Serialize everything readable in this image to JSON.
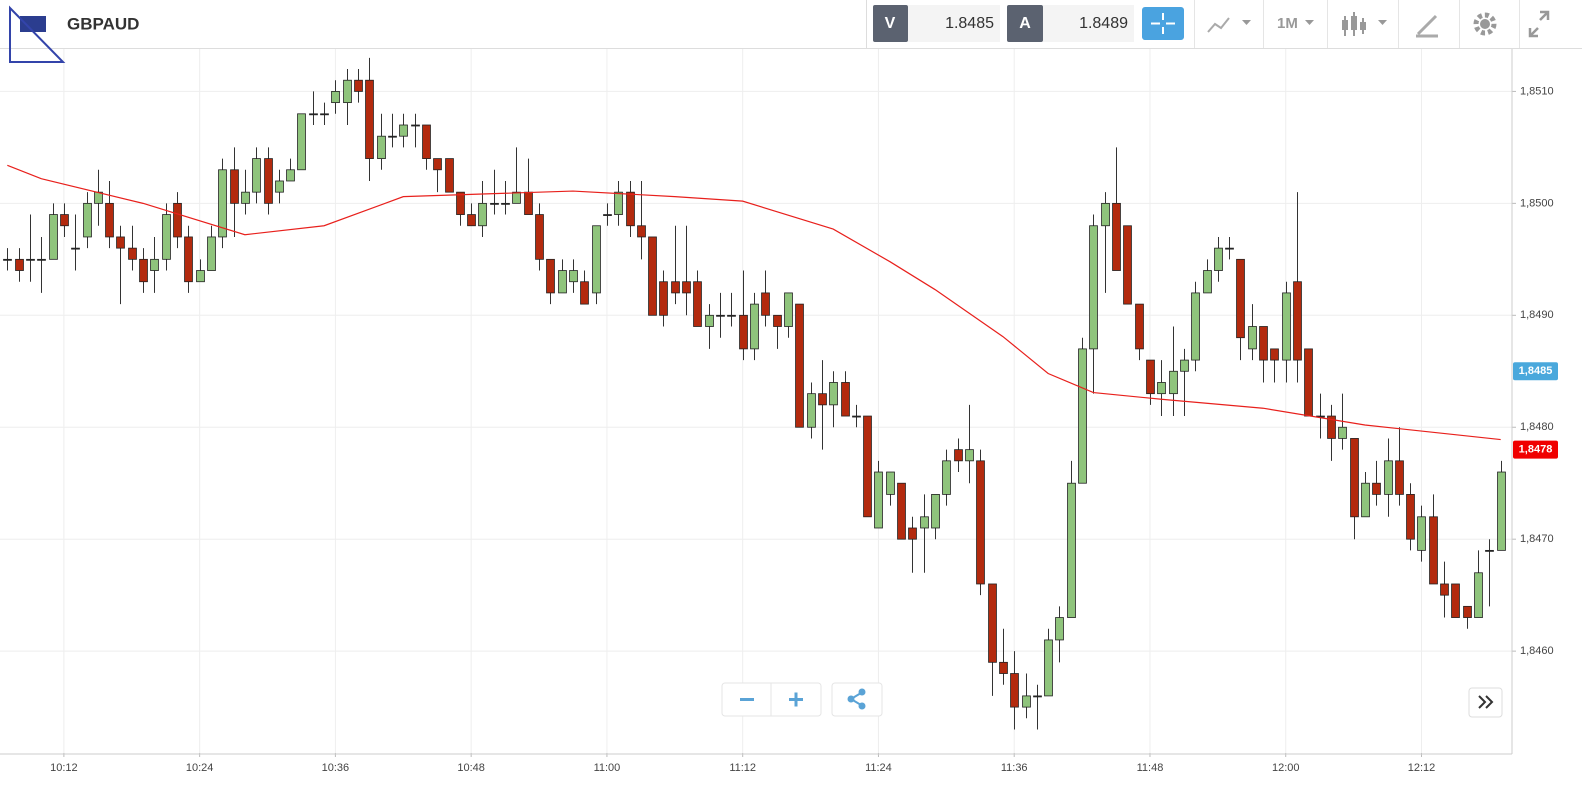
{
  "header": {
    "symbol": "GBPAUD",
    "bid_label": "V",
    "bid": "1.8485",
    "ask_label": "A",
    "ask": "1.8489",
    "timeframe": "1M"
  },
  "chart_data": {
    "type": "candlestick",
    "xlim": [
      "10:06",
      "12:20"
    ],
    "ylim": [
      1.84509,
      1.85137
    ],
    "xticks": [
      "10:12",
      "10:24",
      "10:36",
      "10:48",
      "11:00",
      "11:12",
      "11:24",
      "11:36",
      "11:48",
      "12:00",
      "12:12"
    ],
    "yticks": [
      {
        "value": 1.851,
        "label": "1,8510"
      },
      {
        "value": 1.85,
        "label": "1,8500"
      },
      {
        "value": 1.849,
        "label": "1,8490"
      },
      {
        "value": 1.848,
        "label": "1,8480"
      },
      {
        "value": 1.847,
        "label": "1,8470"
      },
      {
        "value": 1.846,
        "label": "1,8460"
      }
    ],
    "grid": true,
    "up_color": "#8fc47c",
    "down_color": "#b32a0e",
    "price_markers": [
      {
        "value": 1.8485,
        "label": "1,8485",
        "color": "#4aa8dc"
      },
      {
        "value": 1.8478,
        "label": "1,8478",
        "color": "#f00000"
      }
    ],
    "moving_average": {
      "color": "#e8201c",
      "x": [
        "10:07",
        "10:10",
        "10:19",
        "10:28",
        "10:35",
        "10:42",
        "10:57",
        "11:06",
        "11:12",
        "11:20",
        "11:25",
        "11:29",
        "11:35",
        "11:39",
        "11:43",
        "11:49",
        "11:58",
        "12:07",
        "12:19"
      ],
      "values": [
        1.85034,
        1.85022,
        1.85,
        1.84972,
        1.8498,
        1.85006,
        1.85011,
        1.85006,
        1.85002,
        1.84977,
        1.84948,
        1.84923,
        1.84881,
        1.84848,
        1.84831,
        1.84825,
        1.84817,
        1.84802,
        1.84789
      ]
    },
    "candles": [
      {
        "t": "10:07",
        "o": 1.8495,
        "h": 1.8496,
        "l": 1.8494,
        "c": 1.8495
      },
      {
        "t": "10:08",
        "o": 1.8495,
        "h": 1.8496,
        "l": 1.8493,
        "c": 1.8494
      },
      {
        "t": "10:09",
        "o": 1.8495,
        "h": 1.8499,
        "l": 1.8493,
        "c": 1.8495
      },
      {
        "t": "10:10",
        "o": 1.8495,
        "h": 1.8497,
        "l": 1.8492,
        "c": 1.8495
      },
      {
        "t": "10:11",
        "o": 1.8495,
        "h": 1.85,
        "l": 1.8495,
        "c": 1.8499
      },
      {
        "t": "10:12",
        "o": 1.8499,
        "h": 1.85,
        "l": 1.8497,
        "c": 1.8498
      },
      {
        "t": "10:13",
        "o": 1.8496,
        "h": 1.8499,
        "l": 1.8494,
        "c": 1.8496
      },
      {
        "t": "10:14",
        "o": 1.8497,
        "h": 1.8501,
        "l": 1.8496,
        "c": 1.85
      },
      {
        "t": "10:15",
        "o": 1.85,
        "h": 1.8503,
        "l": 1.8498,
        "c": 1.8501
      },
      {
        "t": "10:16",
        "o": 1.85,
        "h": 1.8502,
        "l": 1.8496,
        "c": 1.8497
      },
      {
        "t": "10:17",
        "o": 1.8497,
        "h": 1.8498,
        "l": 1.8491,
        "c": 1.8496
      },
      {
        "t": "10:18",
        "o": 1.8496,
        "h": 1.8498,
        "l": 1.8494,
        "c": 1.8495
      },
      {
        "t": "10:19",
        "o": 1.8495,
        "h": 1.8496,
        "l": 1.8492,
        "c": 1.8493
      },
      {
        "t": "10:20",
        "o": 1.8494,
        "h": 1.8497,
        "l": 1.8492,
        "c": 1.8495
      },
      {
        "t": "10:21",
        "o": 1.8495,
        "h": 1.85,
        "l": 1.8494,
        "c": 1.8499
      },
      {
        "t": "10:22",
        "o": 1.85,
        "h": 1.8501,
        "l": 1.8496,
        "c": 1.8497
      },
      {
        "t": "10:23",
        "o": 1.8497,
        "h": 1.8498,
        "l": 1.8492,
        "c": 1.8493
      },
      {
        "t": "10:24",
        "o": 1.8493,
        "h": 1.8495,
        "l": 1.8493,
        "c": 1.8494
      },
      {
        "t": "10:25",
        "o": 1.8494,
        "h": 1.8498,
        "l": 1.8494,
        "c": 1.8497
      },
      {
        "t": "10:26",
        "o": 1.8497,
        "h": 1.8504,
        "l": 1.8496,
        "c": 1.8503
      },
      {
        "t": "10:27",
        "o": 1.8503,
        "h": 1.8505,
        "l": 1.8497,
        "c": 1.85
      },
      {
        "t": "10:28",
        "o": 1.85,
        "h": 1.8503,
        "l": 1.8499,
        "c": 1.8501
      },
      {
        "t": "10:29",
        "o": 1.8501,
        "h": 1.8505,
        "l": 1.85,
        "c": 1.8504
      },
      {
        "t": "10:30",
        "o": 1.8504,
        "h": 1.8505,
        "l": 1.8499,
        "c": 1.85
      },
      {
        "t": "10:31",
        "o": 1.8501,
        "h": 1.8503,
        "l": 1.85,
        "c": 1.8502
      },
      {
        "t": "10:32",
        "o": 1.8502,
        "h": 1.8504,
        "l": 1.8502,
        "c": 1.8503
      },
      {
        "t": "10:33",
        "o": 1.8503,
        "h": 1.8508,
        "l": 1.8503,
        "c": 1.8508
      },
      {
        "t": "10:34",
        "o": 1.8508,
        "h": 1.851,
        "l": 1.8507,
        "c": 1.8508
      },
      {
        "t": "10:35",
        "o": 1.8508,
        "h": 1.8509,
        "l": 1.8507,
        "c": 1.8508
      },
      {
        "t": "10:36",
        "o": 1.8509,
        "h": 1.8511,
        "l": 1.8508,
        "c": 1.851
      },
      {
        "t": "10:37",
        "o": 1.8509,
        "h": 1.8512,
        "l": 1.8507,
        "c": 1.8511
      },
      {
        "t": "10:38",
        "o": 1.8511,
        "h": 1.8512,
        "l": 1.8509,
        "c": 1.851
      },
      {
        "t": "10:39",
        "o": 1.8511,
        "h": 1.8513,
        "l": 1.8502,
        "c": 1.8504
      },
      {
        "t": "10:40",
        "o": 1.8504,
        "h": 1.8508,
        "l": 1.8503,
        "c": 1.8506
      },
      {
        "t": "10:41",
        "o": 1.8506,
        "h": 1.8508,
        "l": 1.8505,
        "c": 1.8506
      },
      {
        "t": "10:42",
        "o": 1.8506,
        "h": 1.8508,
        "l": 1.8505,
        "c": 1.8507
      },
      {
        "t": "10:43",
        "o": 1.8507,
        "h": 1.8508,
        "l": 1.8505,
        "c": 1.8507
      },
      {
        "t": "10:44",
        "o": 1.8507,
        "h": 1.8507,
        "l": 1.8503,
        "c": 1.8504
      },
      {
        "t": "10:45",
        "o": 1.8504,
        "h": 1.8504,
        "l": 1.8501,
        "c": 1.8503
      },
      {
        "t": "10:46",
        "o": 1.8504,
        "h": 1.8504,
        "l": 1.8501,
        "c": 1.8501
      },
      {
        "t": "10:47",
        "o": 1.8501,
        "h": 1.8501,
        "l": 1.8498,
        "c": 1.8499
      },
      {
        "t": "10:48",
        "o": 1.8499,
        "h": 1.85,
        "l": 1.8498,
        "c": 1.8498
      },
      {
        "t": "10:49",
        "o": 1.8498,
        "h": 1.8502,
        "l": 1.8497,
        "c": 1.85
      },
      {
        "t": "10:50",
        "o": 1.85,
        "h": 1.8503,
        "l": 1.8499,
        "c": 1.85
      },
      {
        "t": "10:51",
        "o": 1.85,
        "h": 1.8502,
        "l": 1.8499,
        "c": 1.85
      },
      {
        "t": "10:52",
        "o": 1.85,
        "h": 1.8505,
        "l": 1.85,
        "c": 1.8501
      },
      {
        "t": "10:53",
        "o": 1.8501,
        "h": 1.8504,
        "l": 1.8499,
        "c": 1.8499
      },
      {
        "t": "10:54",
        "o": 1.8499,
        "h": 1.85,
        "l": 1.8494,
        "c": 1.8495
      },
      {
        "t": "10:55",
        "o": 1.8495,
        "h": 1.8495,
        "l": 1.8491,
        "c": 1.8492
      },
      {
        "t": "10:56",
        "o": 1.8492,
        "h": 1.8495,
        "l": 1.8492,
        "c": 1.8494
      },
      {
        "t": "10:57",
        "o": 1.8493,
        "h": 1.8495,
        "l": 1.8492,
        "c": 1.8494
      },
      {
        "t": "10:58",
        "o": 1.8493,
        "h": 1.8494,
        "l": 1.8491,
        "c": 1.8491
      },
      {
        "t": "10:59",
        "o": 1.8492,
        "h": 1.8498,
        "l": 1.8491,
        "c": 1.8498
      },
      {
        "t": "11:00",
        "o": 1.8499,
        "h": 1.85,
        "l": 1.8498,
        "c": 1.8499
      },
      {
        "t": "11:01",
        "o": 1.8499,
        "h": 1.8502,
        "l": 1.8498,
        "c": 1.8501
      },
      {
        "t": "11:02",
        "o": 1.8501,
        "h": 1.8502,
        "l": 1.8497,
        "c": 1.8498
      },
      {
        "t": "11:03",
        "o": 1.8498,
        "h": 1.8502,
        "l": 1.8495,
        "c": 1.8497
      },
      {
        "t": "11:04",
        "o": 1.8497,
        "h": 1.8497,
        "l": 1.849,
        "c": 1.849
      },
      {
        "t": "11:05",
        "o": 1.8493,
        "h": 1.8494,
        "l": 1.8489,
        "c": 1.849
      },
      {
        "t": "11:06",
        "o": 1.8493,
        "h": 1.8498,
        "l": 1.8491,
        "c": 1.8492
      },
      {
        "t": "11:07",
        "o": 1.8493,
        "h": 1.8498,
        "l": 1.849,
        "c": 1.8492
      },
      {
        "t": "11:08",
        "o": 1.8493,
        "h": 1.8494,
        "l": 1.8489,
        "c": 1.8489
      },
      {
        "t": "11:09",
        "o": 1.8489,
        "h": 1.8491,
        "l": 1.8487,
        "c": 1.849
      },
      {
        "t": "11:10",
        "o": 1.849,
        "h": 1.8492,
        "l": 1.8488,
        "c": 1.849
      },
      {
        "t": "11:11",
        "o": 1.849,
        "h": 1.8492,
        "l": 1.8489,
        "c": 1.849
      },
      {
        "t": "11:12",
        "o": 1.849,
        "h": 1.8494,
        "l": 1.8486,
        "c": 1.8487
      },
      {
        "t": "11:13",
        "o": 1.8487,
        "h": 1.8492,
        "l": 1.8486,
        "c": 1.8491
      },
      {
        "t": "11:14",
        "o": 1.8492,
        "h": 1.8494,
        "l": 1.8489,
        "c": 1.849
      },
      {
        "t": "11:15",
        "o": 1.849,
        "h": 1.849,
        "l": 1.8487,
        "c": 1.8489
      },
      {
        "t": "11:16",
        "o": 1.8489,
        "h": 1.8492,
        "l": 1.8488,
        "c": 1.8492
      },
      {
        "t": "11:17",
        "o": 1.8491,
        "h": 1.8491,
        "l": 1.848,
        "c": 1.848
      },
      {
        "t": "11:18",
        "o": 1.848,
        "h": 1.8484,
        "l": 1.8479,
        "c": 1.8483
      },
      {
        "t": "11:19",
        "o": 1.8483,
        "h": 1.8486,
        "l": 1.8478,
        "c": 1.8482
      },
      {
        "t": "11:20",
        "o": 1.8482,
        "h": 1.8485,
        "l": 1.848,
        "c": 1.8484
      },
      {
        "t": "11:21",
        "o": 1.8484,
        "h": 1.8485,
        "l": 1.8481,
        "c": 1.8481
      },
      {
        "t": "11:22",
        "o": 1.8481,
        "h": 1.8482,
        "l": 1.848,
        "c": 1.8481
      },
      {
        "t": "11:23",
        "o": 1.8481,
        "h": 1.8481,
        "l": 1.8472,
        "c": 1.8472
      },
      {
        "t": "11:24",
        "o": 1.8471,
        "h": 1.8477,
        "l": 1.8471,
        "c": 1.8476
      },
      {
        "t": "11:25",
        "o": 1.8474,
        "h": 1.8476,
        "l": 1.8473,
        "c": 1.8476
      },
      {
        "t": "11:26",
        "o": 1.8475,
        "h": 1.8475,
        "l": 1.847,
        "c": 1.847
      },
      {
        "t": "11:27",
        "o": 1.8471,
        "h": 1.8472,
        "l": 1.8467,
        "c": 1.847
      },
      {
        "t": "11:28",
        "o": 1.8471,
        "h": 1.8474,
        "l": 1.8467,
        "c": 1.8472
      },
      {
        "t": "11:29",
        "o": 1.8471,
        "h": 1.8474,
        "l": 1.847,
        "c": 1.8474
      },
      {
        "t": "11:30",
        "o": 1.8474,
        "h": 1.8478,
        "l": 1.8473,
        "c": 1.8477
      },
      {
        "t": "11:31",
        "o": 1.8478,
        "h": 1.8479,
        "l": 1.8476,
        "c": 1.8477
      },
      {
        "t": "11:32",
        "o": 1.8477,
        "h": 1.8482,
        "l": 1.8475,
        "c": 1.8478
      },
      {
        "t": "11:33",
        "o": 1.8477,
        "h": 1.8478,
        "l": 1.8465,
        "c": 1.8466
      },
      {
        "t": "11:34",
        "o": 1.8466,
        "h": 1.8466,
        "l": 1.8456,
        "c": 1.8459
      },
      {
        "t": "11:35",
        "o": 1.8459,
        "h": 1.8462,
        "l": 1.8457,
        "c": 1.8458
      },
      {
        "t": "11:36",
        "o": 1.8458,
        "h": 1.846,
        "l": 1.8453,
        "c": 1.8455
      },
      {
        "t": "11:37",
        "o": 1.8455,
        "h": 1.8458,
        "l": 1.8454,
        "c": 1.8456
      },
      {
        "t": "11:38",
        "o": 1.8456,
        "h": 1.8457,
        "l": 1.8453,
        "c": 1.8456
      },
      {
        "t": "11:39",
        "o": 1.8456,
        "h": 1.8462,
        "l": 1.8456,
        "c": 1.8461
      },
      {
        "t": "11:40",
        "o": 1.8461,
        "h": 1.8464,
        "l": 1.8459,
        "c": 1.8463
      },
      {
        "t": "11:41",
        "o": 1.8463,
        "h": 1.8477,
        "l": 1.8463,
        "c": 1.8475
      },
      {
        "t": "11:42",
        "o": 1.8475,
        "h": 1.8488,
        "l": 1.8475,
        "c": 1.8487
      },
      {
        "t": "11:43",
        "o": 1.8487,
        "h": 1.8499,
        "l": 1.8483,
        "c": 1.8498
      },
      {
        "t": "11:44",
        "o": 1.8498,
        "h": 1.8501,
        "l": 1.8492,
        "c": 1.85
      },
      {
        "t": "11:45",
        "o": 1.85,
        "h": 1.8505,
        "l": 1.8494,
        "c": 1.8494
      },
      {
        "t": "11:46",
        "o": 1.8498,
        "h": 1.8498,
        "l": 1.8491,
        "c": 1.8491
      },
      {
        "t": "11:47",
        "o": 1.8491,
        "h": 1.8491,
        "l": 1.8486,
        "c": 1.8487
      },
      {
        "t": "11:48",
        "o": 1.8486,
        "h": 1.8486,
        "l": 1.8482,
        "c": 1.8483
      },
      {
        "t": "11:49",
        "o": 1.8483,
        "h": 1.8486,
        "l": 1.8481,
        "c": 1.8484
      },
      {
        "t": "11:50",
        "o": 1.8483,
        "h": 1.8489,
        "l": 1.8481,
        "c": 1.8485
      },
      {
        "t": "11:51",
        "o": 1.8485,
        "h": 1.8487,
        "l": 1.8481,
        "c": 1.8486
      },
      {
        "t": "11:52",
        "o": 1.8486,
        "h": 1.8493,
        "l": 1.8485,
        "c": 1.8492
      },
      {
        "t": "11:53",
        "o": 1.8492,
        "h": 1.8495,
        "l": 1.8492,
        "c": 1.8494
      },
      {
        "t": "11:54",
        "o": 1.8494,
        "h": 1.8497,
        "l": 1.8493,
        "c": 1.8496
      },
      {
        "t": "11:55",
        "o": 1.8496,
        "h": 1.8497,
        "l": 1.8495,
        "c": 1.8496
      },
      {
        "t": "11:56",
        "o": 1.8495,
        "h": 1.8495,
        "l": 1.8486,
        "c": 1.8488
      },
      {
        "t": "11:57",
        "o": 1.8487,
        "h": 1.8491,
        "l": 1.8486,
        "c": 1.8489
      },
      {
        "t": "11:58",
        "o": 1.8489,
        "h": 1.8489,
        "l": 1.8484,
        "c": 1.8486
      },
      {
        "t": "11:59",
        "o": 1.8487,
        "h": 1.8487,
        "l": 1.8484,
        "c": 1.8486
      },
      {
        "t": "12:00",
        "o": 1.8486,
        "h": 1.8493,
        "l": 1.8484,
        "c": 1.8492
      },
      {
        "t": "12:01",
        "o": 1.8493,
        "h": 1.8501,
        "l": 1.8484,
        "c": 1.8486
      },
      {
        "t": "12:02",
        "o": 1.8487,
        "h": 1.8487,
        "l": 1.8481,
        "c": 1.8481
      },
      {
        "t": "12:03",
        "o": 1.8481,
        "h": 1.8483,
        "l": 1.8479,
        "c": 1.8481
      },
      {
        "t": "12:04",
        "o": 1.8481,
        "h": 1.8482,
        "l": 1.8477,
        "c": 1.8479
      },
      {
        "t": "12:05",
        "o": 1.8479,
        "h": 1.8483,
        "l": 1.8478,
        "c": 1.848
      },
      {
        "t": "12:06",
        "o": 1.8479,
        "h": 1.8479,
        "l": 1.847,
        "c": 1.8472
      },
      {
        "t": "12:07",
        "o": 1.8472,
        "h": 1.8476,
        "l": 1.8472,
        "c": 1.8475
      },
      {
        "t": "12:08",
        "o": 1.8475,
        "h": 1.8477,
        "l": 1.8473,
        "c": 1.8474
      },
      {
        "t": "12:09",
        "o": 1.8474,
        "h": 1.8479,
        "l": 1.8472,
        "c": 1.8477
      },
      {
        "t": "12:10",
        "o": 1.8477,
        "h": 1.848,
        "l": 1.8473,
        "c": 1.8474
      },
      {
        "t": "12:11",
        "o": 1.8474,
        "h": 1.8475,
        "l": 1.8469,
        "c": 1.847
      },
      {
        "t": "12:12",
        "o": 1.8469,
        "h": 1.8473,
        "l": 1.8468,
        "c": 1.8472
      },
      {
        "t": "12:13",
        "o": 1.8472,
        "h": 1.8474,
        "l": 1.8466,
        "c": 1.8466
      },
      {
        "t": "12:14",
        "o": 1.8466,
        "h": 1.8468,
        "l": 1.8463,
        "c": 1.8465
      },
      {
        "t": "12:15",
        "o": 1.8466,
        "h": 1.8466,
        "l": 1.8463,
        "c": 1.8463
      },
      {
        "t": "12:16",
        "o": 1.8464,
        "h": 1.8464,
        "l": 1.8462,
        "c": 1.8463
      },
      {
        "t": "12:17",
        "o": 1.8463,
        "h": 1.8469,
        "l": 1.8463,
        "c": 1.8467
      },
      {
        "t": "12:18",
        "o": 1.8469,
        "h": 1.847,
        "l": 1.8464,
        "c": 1.8469
      },
      {
        "t": "12:19",
        "o": 1.8469,
        "h": 1.8477,
        "l": 1.8469,
        "c": 1.8476
      }
    ]
  }
}
